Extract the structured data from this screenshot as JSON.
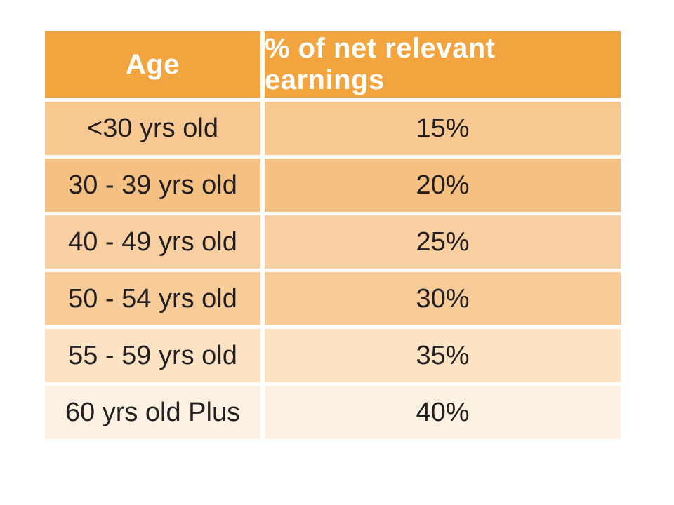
{
  "colors": {
    "page_bg": "#FFFFFF",
    "header_bg": "#F2A43E",
    "header_text": "#FFFFFF",
    "body_text": "#231F20",
    "divider": "#FFFFFF",
    "row_colors": [
      "#F7C892",
      "#F5C183",
      "#F8D0A1",
      "#F7CC99",
      "#FBE3C4",
      "#FDF1E3"
    ]
  },
  "table": {
    "columns": [
      "Age",
      "% of net relevant earnings"
    ],
    "rows": [
      {
        "age": "<30 yrs old",
        "value": "15%"
      },
      {
        "age": "30 - 39 yrs old",
        "value": "20%"
      },
      {
        "age": "40 - 49 yrs old",
        "value": "25%"
      },
      {
        "age": "50 - 54 yrs old",
        "value": "30%"
      },
      {
        "age": "55 - 59 yrs old",
        "value": "35%"
      },
      {
        "age": "60 yrs old Plus",
        "value": "40%"
      }
    ]
  },
  "chart_data": {
    "type": "table",
    "title": "",
    "columns": [
      "Age",
      "% of net relevant earnings"
    ],
    "rows": [
      [
        "<30 yrs old",
        "15%"
      ],
      [
        "30 - 39 yrs old",
        "20%"
      ],
      [
        "40 - 49 yrs old",
        "25%"
      ],
      [
        "50 - 54 yrs old",
        "30%"
      ],
      [
        "55 - 59 yrs old",
        "35%"
      ],
      [
        "60 yrs old Plus",
        "40%"
      ]
    ],
    "categories": [
      "<30 yrs old",
      "30 - 39 yrs old",
      "40 - 49 yrs old",
      "50 - 54 yrs old",
      "55 - 59 yrs old",
      "60 yrs old Plus"
    ],
    "values_percent": [
      15,
      20,
      25,
      30,
      35,
      40
    ],
    "layout": {
      "header_position": "top",
      "grid": "white-gaps",
      "row_shading": "fades lighter toward bottom"
    }
  }
}
